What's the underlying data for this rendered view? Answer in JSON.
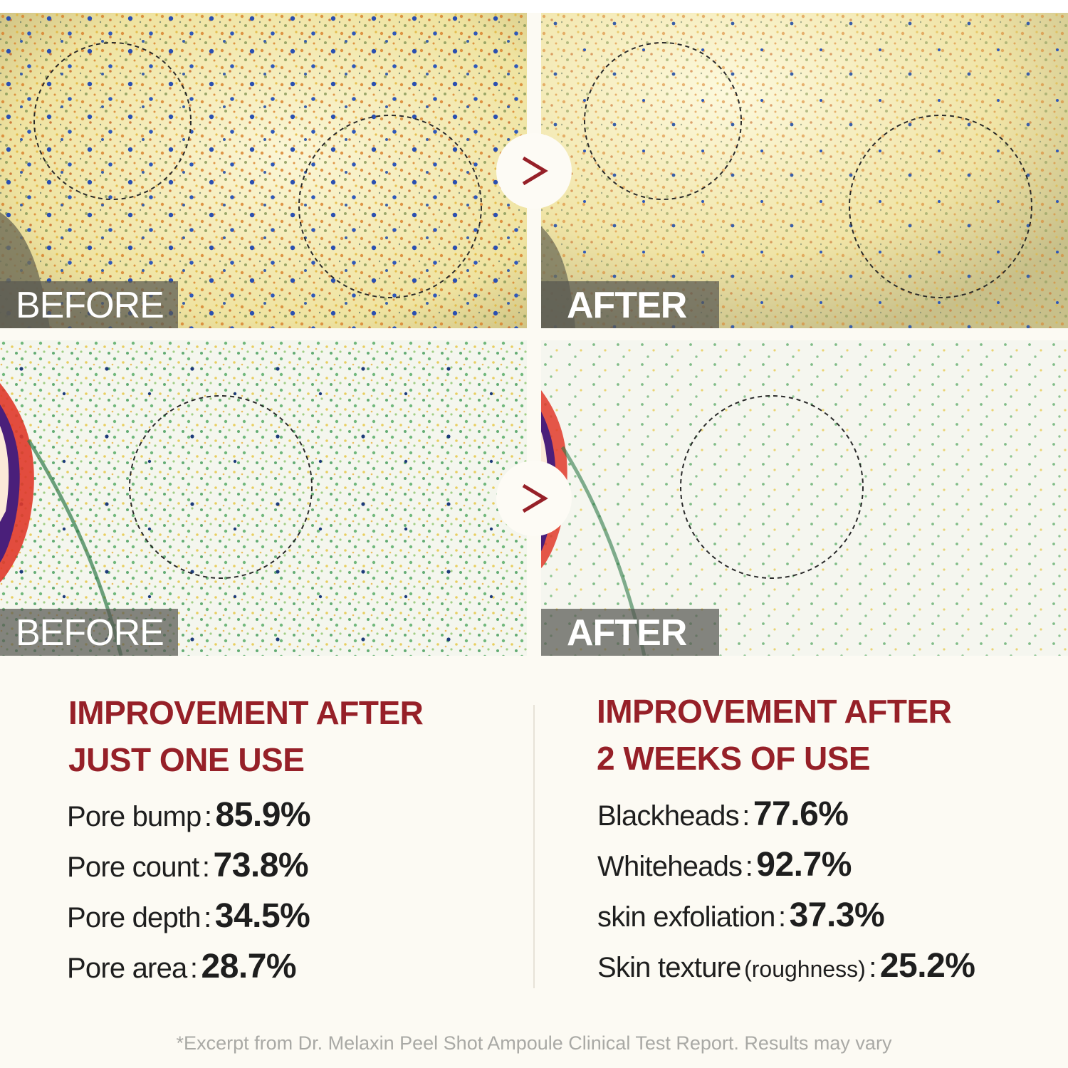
{
  "panels": {
    "before_label": "BEFORE",
    "after_label": "AFTER",
    "arrow_glyph": ">"
  },
  "left_column": {
    "heading_line1": "IMPROVEMENT AFTER",
    "heading_line2": "JUST ONE USE",
    "stats": [
      {
        "label": "Pore bump",
        "value": "85.9%"
      },
      {
        "label": "Pore count",
        "value": "73.8%"
      },
      {
        "label": "Pore depth",
        "value": "34.5%"
      },
      {
        "label": "Pore area",
        "value": "28.7%"
      }
    ]
  },
  "right_column": {
    "heading_line1": "IMPROVEMENT AFTER",
    "heading_line2": "2 WEEKS OF USE",
    "stats": [
      {
        "label": "Blackheads",
        "value": "77.6%"
      },
      {
        "label": "Whiteheads",
        "value": "92.7%"
      },
      {
        "label": "skin exfoliation",
        "value": "37.3%"
      },
      {
        "label": "Skin texture",
        "note": "(roughness)",
        "value": "25.2%"
      }
    ]
  },
  "separator": ":",
  "footnote": "*Excerpt from Dr. Melaxin Peel Shot Ampoule Clinical Test Report. Results may vary",
  "colors": {
    "heading": "#962028",
    "arrow": "#962028",
    "background": "#fcfaf3",
    "text": "#1e1e1e",
    "footnote": "#a9a9a5"
  }
}
